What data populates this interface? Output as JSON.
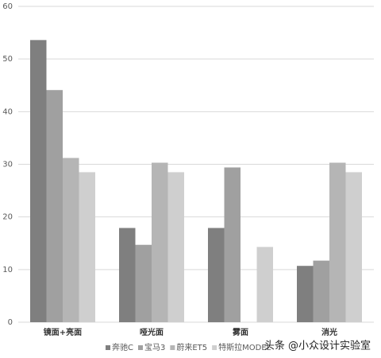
{
  "chart_data": {
    "type": "bar",
    "categories": [
      "镜面+亮面",
      "哑光面",
      "雾面",
      "消光"
    ],
    "series": [
      {
        "name": "奔驰C",
        "color": "#7f7f7f",
        "values": [
          53.6,
          17.9,
          17.9,
          10.7
        ]
      },
      {
        "name": "宝马3",
        "color": "#a0a0a0",
        "values": [
          44.1,
          14.7,
          29.4,
          11.7
        ]
      },
      {
        "name": "蔚来ET5",
        "color": "#b5b5b5",
        "values": [
          31.2,
          30.3,
          null,
          30.3
        ]
      },
      {
        "name": "特斯拉MODEL",
        "color": "#cfcfcf",
        "values": [
          28.5,
          28.5,
          14.3,
          28.5
        ]
      }
    ],
    "ylim": [
      0,
      60
    ],
    "yticks": [
      0,
      10,
      20,
      30,
      40,
      50,
      60
    ],
    "grid": true,
    "legend": "bottom",
    "watermark": "头条 @小众设计实验室"
  }
}
